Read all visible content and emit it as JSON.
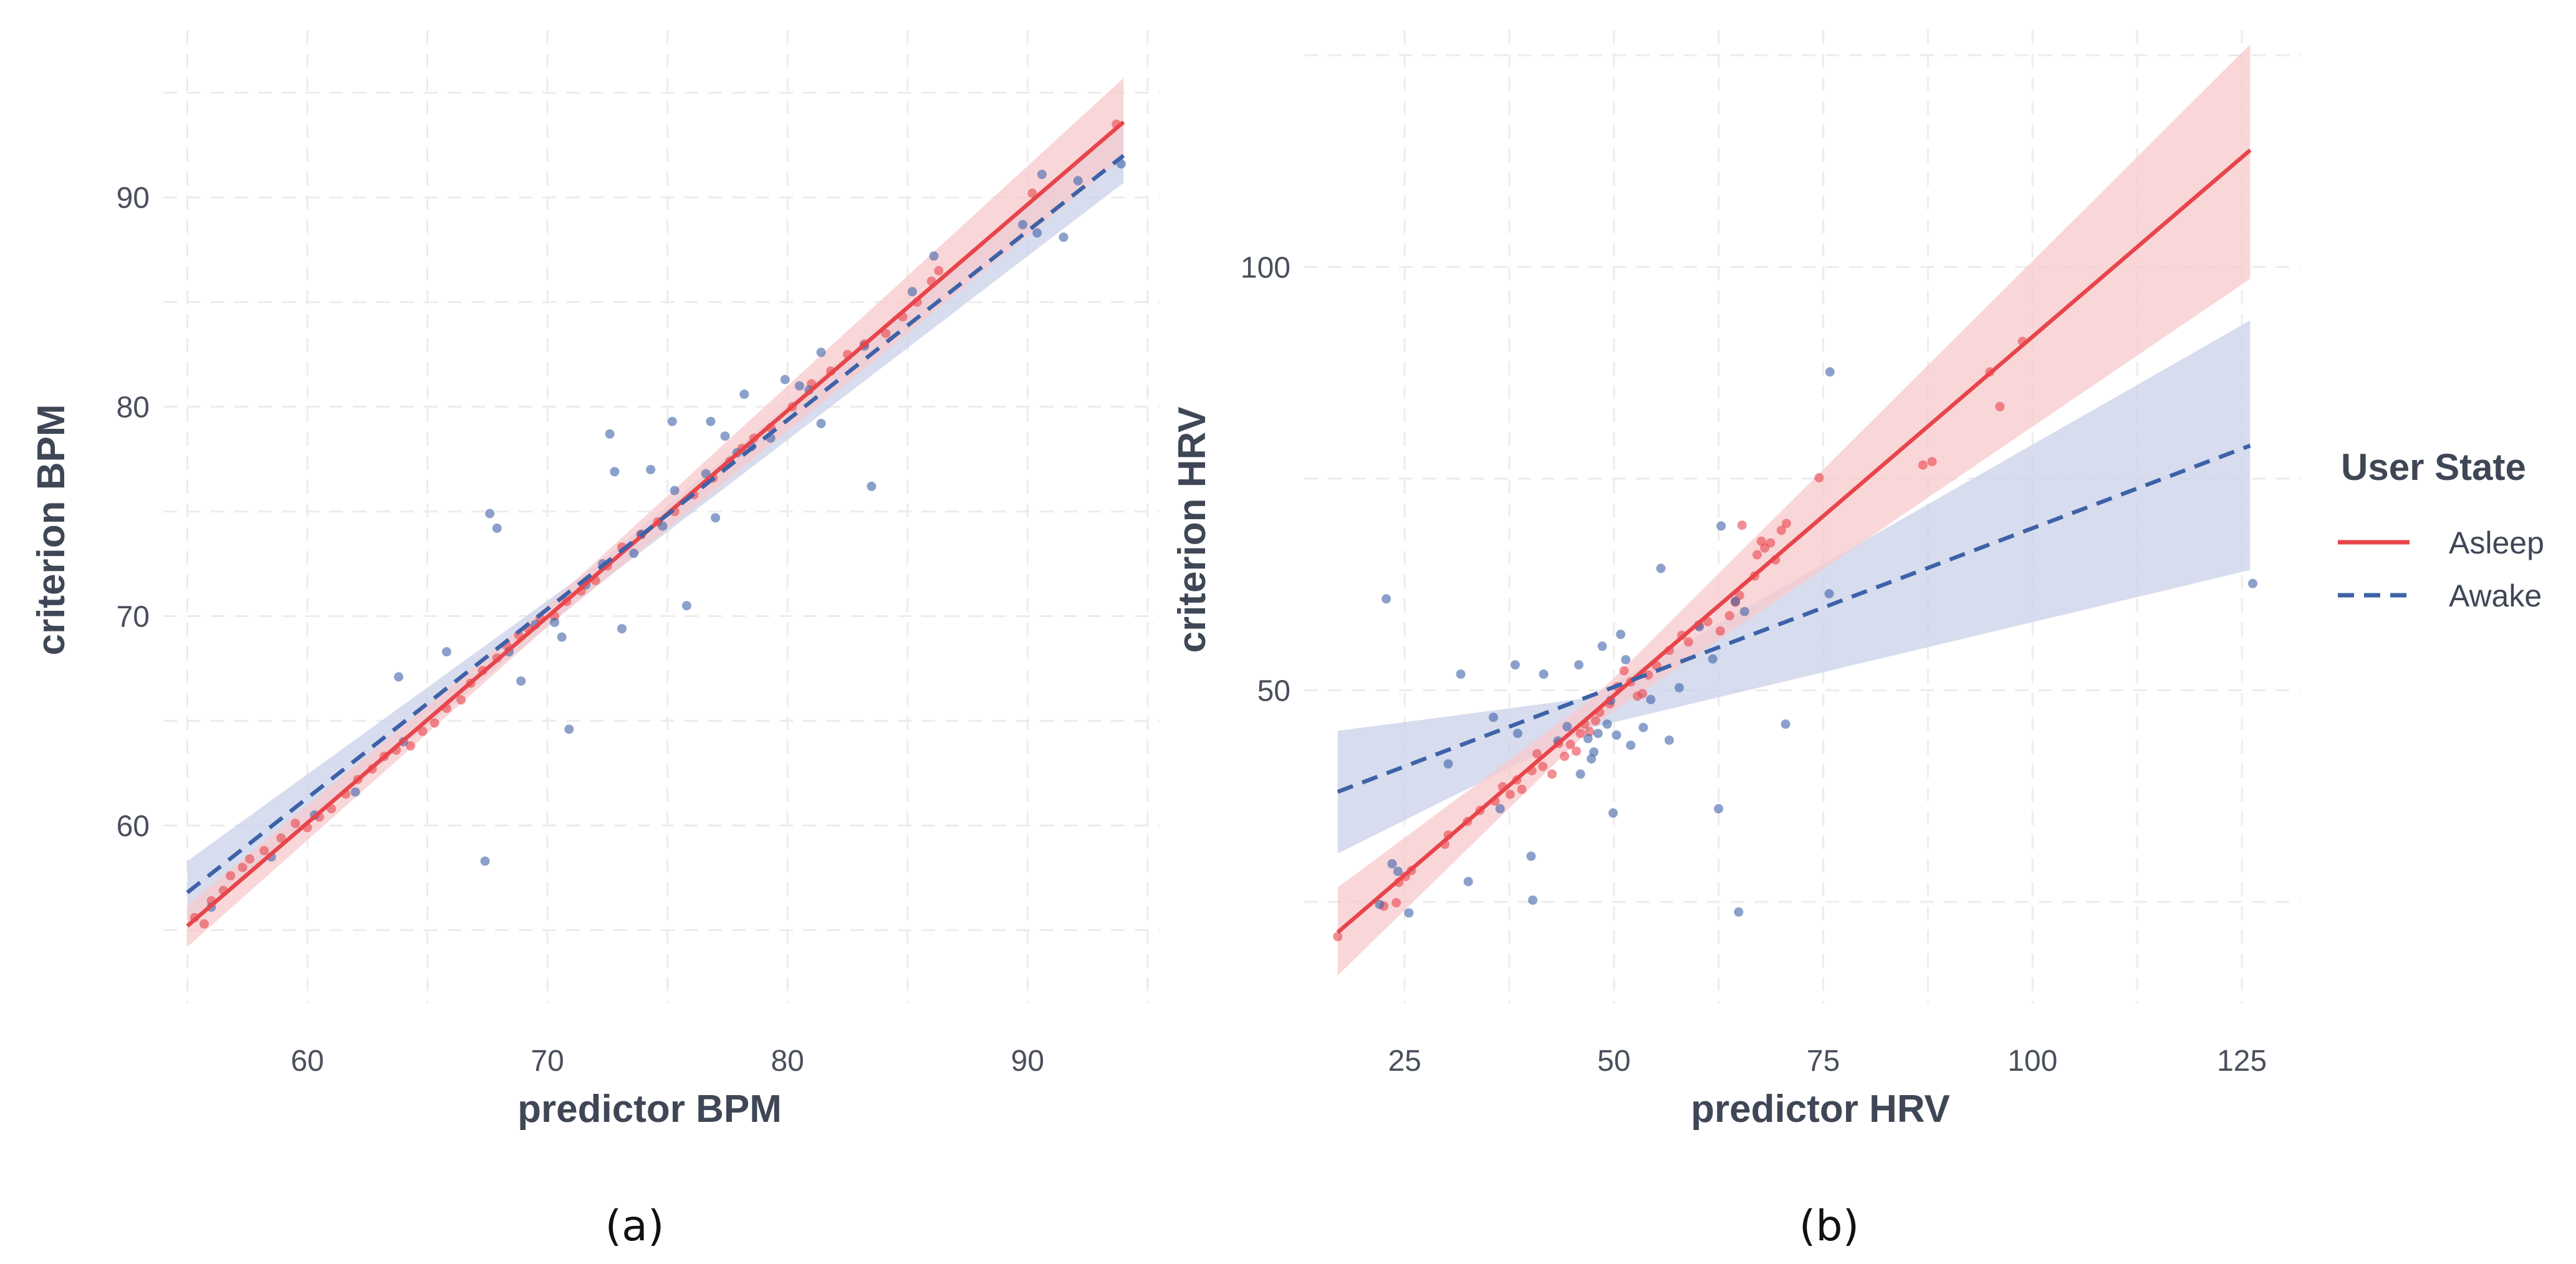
{
  "chart_data": [
    {
      "type": "scatter",
      "panel_label": "(a)",
      "xlabel": "predictor BPM",
      "ylabel": "criterion BPM",
      "xlim": [
        54,
        95.5
      ],
      "ylim": [
        51.5,
        98
      ],
      "x_ticks": [
        60,
        70,
        80,
        90
      ],
      "y_ticks": [
        60,
        70,
        80,
        90
      ],
      "grid": true,
      "series": [
        {
          "name": "Asleep",
          "color": "#e8454b",
          "line_style": "solid",
          "fit": {
            "x": [
              55,
              94
            ],
            "y": [
              55.2,
              93.6
            ]
          },
          "band": {
            "x": [
              55,
              70,
              94
            ],
            "lower": [
              54.2,
              69.5,
              91.9
            ],
            "upper": [
              56.2,
              70.5,
              95.7
            ]
          },
          "points": [
            [
              55.3,
              55.6
            ],
            [
              55.7,
              55.3
            ],
            [
              56.0,
              56.4
            ],
            [
              56.5,
              56.9
            ],
            [
              56.8,
              57.6
            ],
            [
              57.3,
              58.0
            ],
            [
              57.6,
              58.4
            ],
            [
              58.2,
              58.8
            ],
            [
              58.9,
              59.4
            ],
            [
              59.5,
              60.1
            ],
            [
              60.0,
              59.9
            ],
            [
              60.5,
              60.4
            ],
            [
              61.0,
              60.8
            ],
            [
              61.6,
              61.5
            ],
            [
              62.1,
              62.2
            ],
            [
              62.7,
              62.7
            ],
            [
              63.2,
              63.3
            ],
            [
              63.7,
              63.6
            ],
            [
              64.3,
              63.8
            ],
            [
              64.8,
              64.5
            ],
            [
              65.3,
              64.9
            ],
            [
              65.8,
              65.6
            ],
            [
              66.4,
              66.0
            ],
            [
              66.8,
              66.8
            ],
            [
              67.3,
              67.4
            ],
            [
              67.9,
              68.0
            ],
            [
              68.3,
              68.6
            ],
            [
              68.8,
              69.1
            ],
            [
              69.2,
              69.4
            ],
            [
              69.7,
              69.9
            ],
            [
              70.3,
              70.0
            ],
            [
              70.8,
              70.7
            ],
            [
              71.4,
              71.2
            ],
            [
              72.0,
              71.7
            ],
            [
              72.5,
              72.4
            ],
            [
              73.1,
              73.3
            ],
            [
              73.9,
              73.9
            ],
            [
              74.6,
              74.5
            ],
            [
              75.3,
              75.0
            ],
            [
              76.1,
              75.8
            ],
            [
              76.9,
              76.6
            ],
            [
              77.6,
              77.4
            ],
            [
              78.1,
              78.0
            ],
            [
              78.6,
              78.5
            ],
            [
              79.3,
              79.0
            ],
            [
              80.2,
              80.0
            ],
            [
              81.0,
              81.1
            ],
            [
              81.8,
              81.7
            ],
            [
              82.5,
              82.5
            ],
            [
              83.2,
              83.0
            ],
            [
              84.1,
              83.5
            ],
            [
              84.8,
              84.3
            ],
            [
              85.4,
              85.0
            ],
            [
              86.0,
              86.0
            ],
            [
              86.3,
              86.5
            ],
            [
              90.2,
              90.2
            ],
            [
              93.7,
              93.5
            ]
          ]
        },
        {
          "name": "Awake",
          "color": "#3e62a8",
          "line_style": "dashed",
          "fit": {
            "x": [
              55,
              94
            ],
            "y": [
              56.8,
              92.0
            ]
          },
          "band": {
            "x": [
              55,
              72,
              94
            ],
            "lower": [
              55.3,
              71.4,
              90.7
            ],
            "upper": [
              58.3,
              72.4,
              93.5
            ]
          },
          "points": [
            [
              56.0,
              56.1
            ],
            [
              58.5,
              58.5
            ],
            [
              60.3,
              60.5
            ],
            [
              62.0,
              61.6
            ],
            [
              63.8,
              67.1
            ],
            [
              64.0,
              64.0
            ],
            [
              65.8,
              68.3
            ],
            [
              67.4,
              58.3
            ],
            [
              67.6,
              74.9
            ],
            [
              67.9,
              74.2
            ],
            [
              68.4,
              68.3
            ],
            [
              68.9,
              66.9
            ],
            [
              69.5,
              69.6
            ],
            [
              70.3,
              69.7
            ],
            [
              70.6,
              69.0
            ],
            [
              70.9,
              64.6
            ],
            [
              71.6,
              71.5
            ],
            [
              72.3,
              72.5
            ],
            [
              72.6,
              78.7
            ],
            [
              72.8,
              76.9
            ],
            [
              73.1,
              69.4
            ],
            [
              73.6,
              73.0
            ],
            [
              73.9,
              73.9
            ],
            [
              74.3,
              77.0
            ],
            [
              74.8,
              74.3
            ],
            [
              75.2,
              79.3
            ],
            [
              75.3,
              76.0
            ],
            [
              75.8,
              70.5
            ],
            [
              76.6,
              76.8
            ],
            [
              76.8,
              79.3
            ],
            [
              77.0,
              74.7
            ],
            [
              77.4,
              78.6
            ],
            [
              77.9,
              77.8
            ],
            [
              78.2,
              80.6
            ],
            [
              78.5,
              78.1
            ],
            [
              79.3,
              78.5
            ],
            [
              79.9,
              81.3
            ],
            [
              80.5,
              81.0
            ],
            [
              80.9,
              80.8
            ],
            [
              81.4,
              82.6
            ],
            [
              81.4,
              79.2
            ],
            [
              83.2,
              82.9
            ],
            [
              83.5,
              76.2
            ],
            [
              85.2,
              85.5
            ],
            [
              86.1,
              87.2
            ],
            [
              89.8,
              88.7
            ],
            [
              90.4,
              88.3
            ],
            [
              90.6,
              91.1
            ],
            [
              91.5,
              88.1
            ],
            [
              92.1,
              90.8
            ],
            [
              93.9,
              91.6
            ]
          ]
        }
      ]
    },
    {
      "type": "scatter",
      "panel_label": "(b)",
      "xlabel": "predictor HRV",
      "ylabel": "criterion HRV",
      "xlim": [
        13,
        132
      ],
      "ylim": [
        13,
        128
      ],
      "x_ticks": [
        25,
        50,
        75,
        100,
        125
      ],
      "y_ticks": [
        50,
        100
      ],
      "grid": true,
      "series": [
        {
          "name": "Asleep",
          "color": "#e8454b",
          "line_style": "solid",
          "fit": {
            "x": [
              17,
              126
            ],
            "y": [
              21.4,
              113.8
            ]
          },
          "band": {
            "x": [
              17,
              48,
              126
            ],
            "lower": [
              16.3,
              46.2,
              98.6
            ],
            "upper": [
              26.7,
              49.5,
              126.3
            ]
          },
          "points": [
            [
              17.0,
              20.9
            ],
            [
              22.5,
              24.5
            ],
            [
              24.0,
              24.9
            ],
            [
              24.3,
              27.3
            ],
            [
              25.1,
              28.0
            ],
            [
              25.8,
              28.7
            ],
            [
              29.8,
              31.8
            ],
            [
              30.2,
              32.9
            ],
            [
              32.5,
              34.5
            ],
            [
              34.0,
              35.8
            ],
            [
              35.8,
              36.9
            ],
            [
              36.7,
              38.6
            ],
            [
              37.6,
              37.7
            ],
            [
              38.4,
              39.4
            ],
            [
              39.0,
              38.3
            ],
            [
              40.2,
              40.5
            ],
            [
              40.8,
              42.5
            ],
            [
              41.5,
              41.0
            ],
            [
              42.6,
              40.1
            ],
            [
              43.4,
              43.7
            ],
            [
              44.1,
              42.2
            ],
            [
              44.8,
              43.6
            ],
            [
              45.5,
              42.8
            ],
            [
              46.0,
              44.9
            ],
            [
              46.5,
              46.0
            ],
            [
              47.1,
              45.1
            ],
            [
              47.8,
              46.4
            ],
            [
              48.3,
              47.4
            ],
            [
              49.5,
              48.4
            ],
            [
              50.4,
              50.4
            ],
            [
              51.2,
              52.3
            ],
            [
              52.0,
              51.0
            ],
            [
              52.8,
              49.3
            ],
            [
              53.4,
              49.6
            ],
            [
              54.1,
              51.8
            ],
            [
              55.1,
              52.9
            ],
            [
              56.6,
              54.7
            ],
            [
              58.1,
              56.5
            ],
            [
              58.9,
              55.7
            ],
            [
              60.1,
              57.7
            ],
            [
              61.2,
              58.1
            ],
            [
              62.7,
              57.0
            ],
            [
              63.8,
              58.8
            ],
            [
              64.5,
              60.4
            ],
            [
              65.0,
              61.2
            ],
            [
              65.3,
              69.5
            ],
            [
              66.8,
              63.5
            ],
            [
              67.1,
              66.0
            ],
            [
              67.6,
              67.6
            ],
            [
              68.0,
              66.8
            ],
            [
              68.7,
              67.4
            ],
            [
              69.3,
              65.4
            ],
            [
              70.0,
              68.9
            ],
            [
              70.6,
              69.7
            ],
            [
              74.5,
              75.1
            ],
            [
              86.9,
              76.6
            ],
            [
              88.0,
              77.0
            ],
            [
              94.9,
              87.6
            ],
            [
              96.1,
              83.5
            ],
            [
              98.8,
              91.2
            ]
          ]
        },
        {
          "name": "Awake",
          "color": "#3e62a8",
          "line_style": "dashed",
          "fit": {
            "x": [
              17,
              126
            ],
            "y": [
              38.0,
              78.9
            ]
          },
          "band": {
            "x": [
              17,
              47,
              126
            ],
            "lower": [
              30.7,
              45.5,
              64.2
            ],
            "upper": [
              45.2,
              49.1,
              93.7
            ]
          },
          "points": [
            [
              22.0,
              24.7
            ],
            [
              22.8,
              60.8
            ],
            [
              23.5,
              29.5
            ],
            [
              24.2,
              28.6
            ],
            [
              25.5,
              23.7
            ],
            [
              30.2,
              41.3
            ],
            [
              31.7,
              51.9
            ],
            [
              32.6,
              27.4
            ],
            [
              35.6,
              46.8
            ],
            [
              36.4,
              36.0
            ],
            [
              38.2,
              53.0
            ],
            [
              38.5,
              44.9
            ],
            [
              40.1,
              30.4
            ],
            [
              40.3,
              25.2
            ],
            [
              41.6,
              51.9
            ],
            [
              43.3,
              44.0
            ],
            [
              44.4,
              45.7
            ],
            [
              45.8,
              53.0
            ],
            [
              46.0,
              40.1
            ],
            [
              46.9,
              44.3
            ],
            [
              47.3,
              41.9
            ],
            [
              47.6,
              42.7
            ],
            [
              48.1,
              44.9
            ],
            [
              48.6,
              55.2
            ],
            [
              49.2,
              46.0
            ],
            [
              49.6,
              48.8
            ],
            [
              49.9,
              35.5
            ],
            [
              50.3,
              44.7
            ],
            [
              50.8,
              56.6
            ],
            [
              51.4,
              53.6
            ],
            [
              52.0,
              43.5
            ],
            [
              53.5,
              45.6
            ],
            [
              54.4,
              48.9
            ],
            [
              55.6,
              64.4
            ],
            [
              56.6,
              44.1
            ],
            [
              57.8,
              50.3
            ],
            [
              60.2,
              57.5
            ],
            [
              61.8,
              53.7
            ],
            [
              62.5,
              36.0
            ],
            [
              62.8,
              69.4
            ],
            [
              64.5,
              60.5
            ],
            [
              64.9,
              23.8
            ],
            [
              65.6,
              59.3
            ],
            [
              70.5,
              46.0
            ],
            [
              75.7,
              61.4
            ],
            [
              75.8,
              87.6
            ],
            [
              126.3,
              62.6
            ]
          ]
        }
      ]
    }
  ],
  "legend": {
    "title": "User State",
    "items": [
      {
        "label": "Asleep",
        "color": "#e8454b",
        "line_style": "solid"
      },
      {
        "label": "Awake",
        "color": "#3e62a8",
        "line_style": "dashed"
      }
    ]
  }
}
